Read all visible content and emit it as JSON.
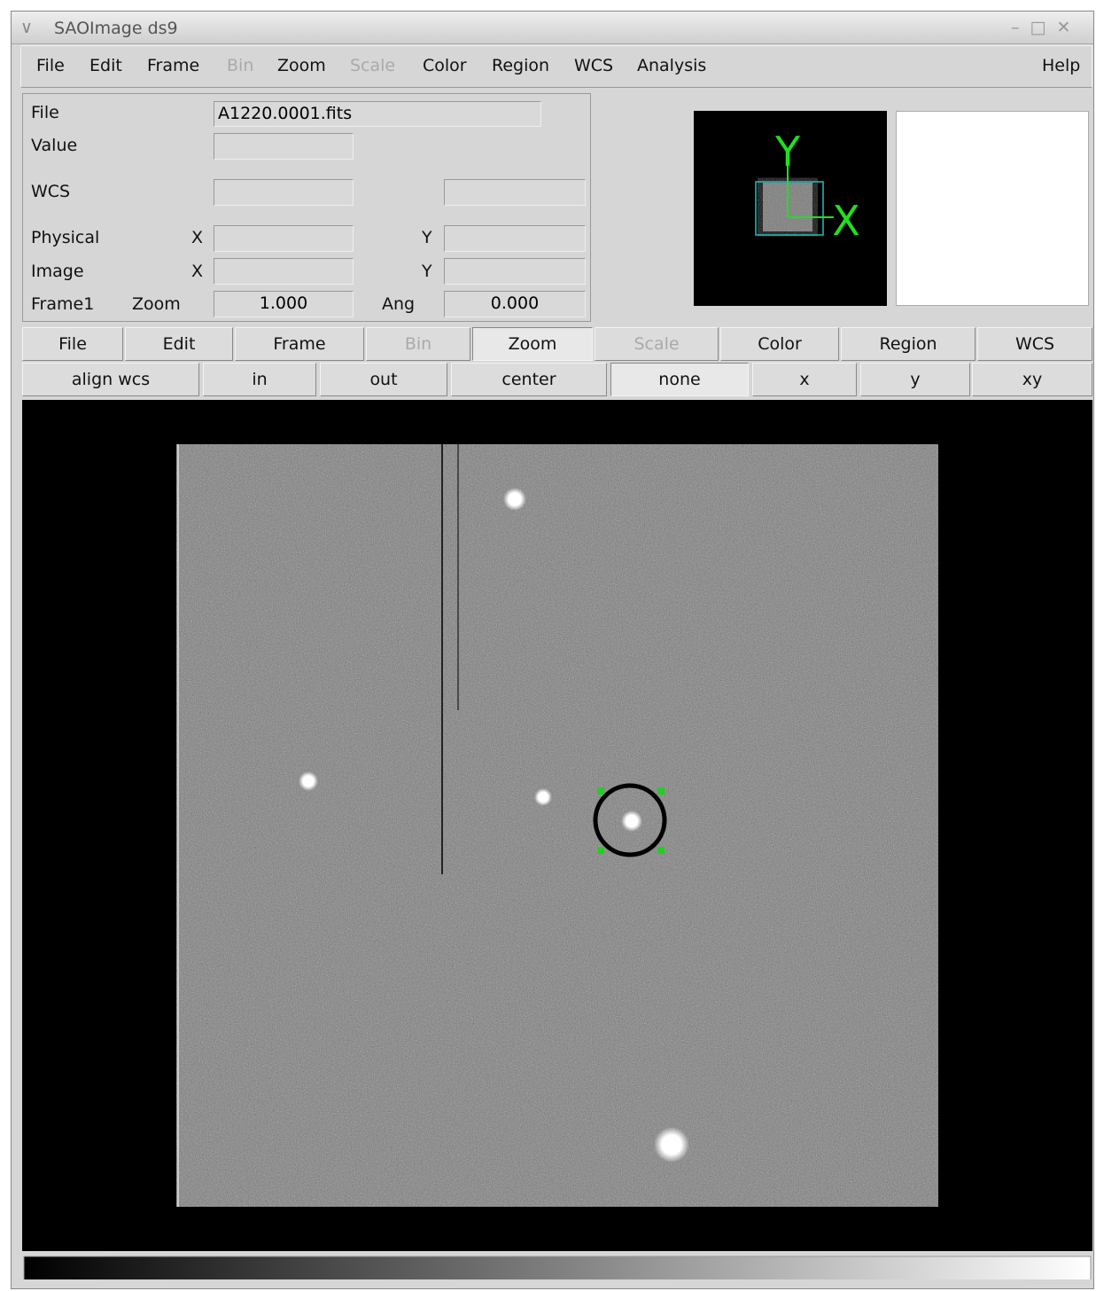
{
  "window": {
    "title": "SAOImage ds9"
  },
  "menu": [
    {
      "label": "File"
    },
    {
      "label": "Edit"
    },
    {
      "label": "Frame"
    },
    {
      "label": "Bin",
      "disabled": true
    },
    {
      "label": "Zoom"
    },
    {
      "label": "Scale",
      "disabled": true
    },
    {
      "label": "Color"
    },
    {
      "label": "Region"
    },
    {
      "label": "WCS"
    },
    {
      "label": "Analysis"
    },
    {
      "label": "Help"
    }
  ],
  "info": {
    "file_label": "File",
    "file_value": "A1220.0001.fits",
    "value_label": "Value",
    "wcs_label": "WCS",
    "physical_label": "Physical",
    "physical_x": "X",
    "physical_y": "Y",
    "image_label": "Image",
    "image_x": "X",
    "image_y": "Y",
    "frame_label": "Frame1",
    "zoom_label": "Zoom",
    "zoom_value": "1.000",
    "angle_label": "Ang",
    "angle_value": "0.000"
  },
  "panner": {
    "y_axis": "Y",
    "x_axis": "X"
  },
  "buttons": [
    {
      "label": "File"
    },
    {
      "label": "Edit"
    },
    {
      "label": "Frame"
    },
    {
      "label": "Bin",
      "disabled": true
    },
    {
      "label": "Zoom",
      "pressed": true
    },
    {
      "label": "Scale",
      "disabled": true
    },
    {
      "label": "Color"
    },
    {
      "label": "Region"
    },
    {
      "label": "WCS"
    }
  ],
  "zoom_buttons": [
    {
      "label": "align wcs"
    },
    {
      "label": "in"
    },
    {
      "label": "out"
    },
    {
      "label": "center"
    },
    {
      "label": "none",
      "pressed": true
    },
    {
      "label": "x"
    },
    {
      "label": "y"
    },
    {
      "label": "xy"
    }
  ]
}
